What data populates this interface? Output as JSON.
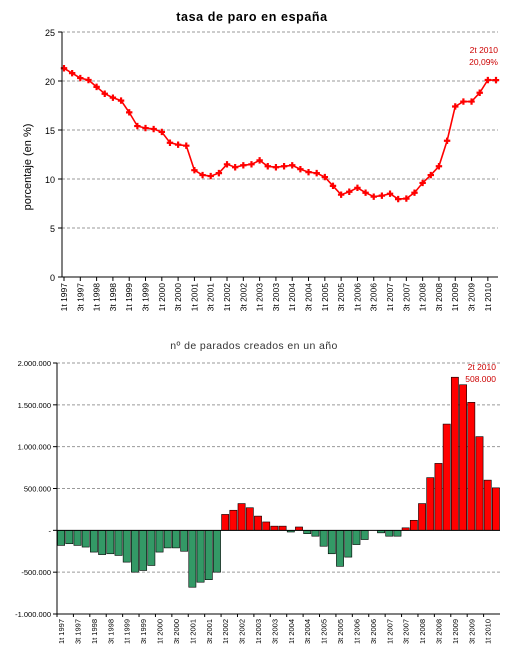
{
  "charts": [
    {
      "type": "line",
      "title": "tasa de paro en españa",
      "ylabel": "porcentaje (en %)",
      "xlabel": "",
      "ylim": [
        0,
        25
      ],
      "yticks": [
        0,
        5,
        10,
        15,
        20,
        25
      ],
      "ytick_labels": [
        "0",
        "5",
        "10",
        "15",
        "20",
        "25"
      ],
      "xtick_labels": [
        "1t 1997",
        "3t 1997",
        "1t 1998",
        "3t 1998",
        "1t 1999",
        "3t 1999",
        "1t 2000",
        "3t 2000",
        "1t 2001",
        "3t 2001",
        "1t 2002",
        "3t 2002",
        "1t 2003",
        "3t 2003",
        "1t 2004",
        "3t 2004",
        "1t 2005",
        "3t 2005",
        "1t 2006",
        "3t 2006",
        "1t 2007",
        "3t 2007",
        "1t 2008",
        "3t 2008",
        "1t 2009",
        "3t 2009",
        "1t 2010"
      ],
      "grid": true,
      "annotation": [
        "2t 2010",
        "20,09%"
      ],
      "color": "#ff0000",
      "series": [
        {
          "values": [
            21.3,
            20.8,
            20.3,
            20.1,
            19.4,
            18.7,
            18.3,
            18.0,
            16.8,
            15.4,
            15.2,
            15.1,
            14.8,
            13.7,
            13.5,
            13.4,
            10.9,
            10.4,
            10.3,
            10.6,
            11.5,
            11.2,
            11.4,
            11.5,
            11.9,
            11.3,
            11.2,
            11.3,
            11.4,
            11.0,
            10.7,
            10.6,
            10.2,
            9.3,
            8.4,
            8.7,
            9.1,
            8.6,
            8.2,
            8.3,
            8.5,
            7.95,
            8.0,
            8.6,
            9.6,
            10.4,
            11.3,
            13.9,
            17.4,
            17.9,
            17.9,
            18.8,
            20.1,
            20.09
          ]
        }
      ]
    },
    {
      "type": "bar",
      "title": "nº de parados creados en un año",
      "xlabel": "",
      "ylabel": "",
      "ylim": [
        -1000000,
        2000000
      ],
      "yticks": [
        -1000000,
        -500000,
        0,
        500000,
        1000000,
        1500000,
        2000000
      ],
      "ytick_labels": [
        "-1.000.000",
        "-500.000",
        "-",
        "500.000",
        "1.000.000",
        "1.500.000",
        "2.000.000"
      ],
      "xtick_labels": [
        "1t 1997",
        "3t 1997",
        "1t 1998",
        "3t 1998",
        "1t 1999",
        "3t 1999",
        "1t 2000",
        "3t 2000",
        "1t 2001",
        "3t 2001",
        "1t 2002",
        "3t 2002",
        "1t 2003",
        "3t 2003",
        "1t 2004",
        "3t 2004",
        "1t 2005",
        "3t 2005",
        "1t 2006",
        "3t 2006",
        "1t 2007",
        "3t 2007",
        "1t 2008",
        "3t 2008",
        "1t 2009",
        "3t 2009",
        "1t 2010"
      ],
      "grid": true,
      "annotation": [
        "2t 2010",
        "508.000"
      ],
      "positive_color": "#ff0000",
      "negative_color": "#339966",
      "values": [
        -180000,
        -160000,
        -180000,
        -200000,
        -260000,
        -290000,
        -280000,
        -300000,
        -380000,
        -500000,
        -480000,
        -420000,
        -260000,
        -210000,
        -210000,
        -250000,
        -680000,
        -620000,
        -590000,
        -500000,
        190000,
        240000,
        320000,
        270000,
        170000,
        100000,
        50000,
        50000,
        -20000,
        40000,
        -40000,
        -70000,
        -190000,
        -280000,
        -430000,
        -320000,
        -170000,
        -110000,
        0,
        -30000,
        -70000,
        -70000,
        30000,
        120000,
        320000,
        630000,
        800000,
        1270000,
        1830000,
        1740000,
        1530000,
        1120000,
        600000,
        508000
      ]
    }
  ]
}
